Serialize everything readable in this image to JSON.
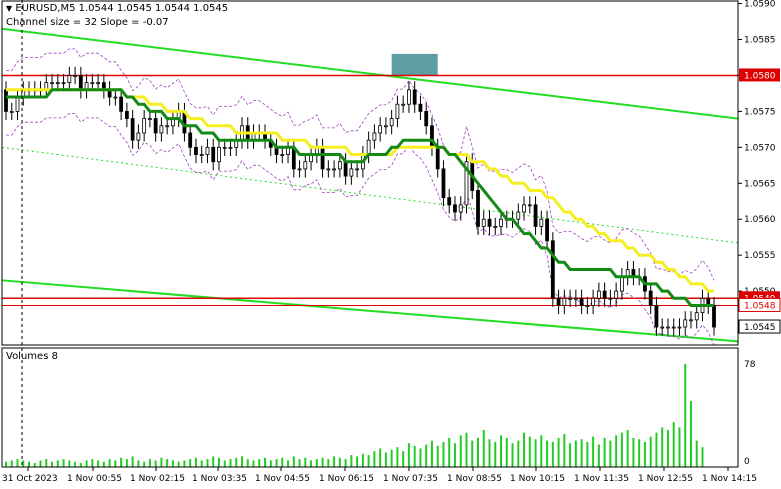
{
  "header": {
    "symbol_line": "EURUSD,M5  1.0544 1.0545 1.0544 1.0545",
    "channel_line": "Channel size = 32 Slope = -0.07",
    "volumes_label": "Volumes 8"
  },
  "colors": {
    "bull": "#000000",
    "bear": "#000000",
    "ma_slow": "#f5ef22",
    "ma_fast": "#138a13",
    "channel": "#22dd22",
    "envelope": "#a040c0",
    "level": "#dd0000",
    "zone": "#5e9ea0",
    "volume": "#22cc22",
    "volume_spike": "#dd0000"
  },
  "chart_data": {
    "type": "candlestick",
    "symbol": "EURUSD",
    "timeframe": "M5",
    "ylim": [
      1.05425,
      1.05905
    ],
    "price_ticks": [
      "1.0590",
      "1.0585",
      "1.0580",
      "1.0575",
      "1.0570",
      "1.0565",
      "1.0560",
      "1.0555",
      "1.0550",
      "1.0545"
    ],
    "x_labels": [
      "31 Oct 2023",
      "1 Nov 00:55",
      "1 Nov 02:15",
      "1 Nov 03:35",
      "1 Nov 04:55",
      "1 Nov 06:15",
      "1 Nov 07:35",
      "1 Nov 08:55",
      "1 Nov 10:15",
      "1 Nov 11:35",
      "1 Nov 12:55",
      "1 Nov 14:15"
    ],
    "price_labels": [
      {
        "text": "1.0580",
        "value": 1.058,
        "style": "red"
      },
      {
        "text": "1.0549",
        "value": 1.0549,
        "style": "red"
      },
      {
        "text": "1.0548",
        "value": 1.0548,
        "style": "redline"
      },
      {
        "text": "1.0545",
        "value": 1.0545,
        "style": "plain"
      }
    ],
    "horizontal_levels": [
      1.058,
      1.0549,
      1.0548
    ],
    "channel": {
      "upper_start": 1.05865,
      "upper_end": 1.0574,
      "mid_start": 1.057,
      "mid_end": 1.05567,
      "lower_start": 1.05515,
      "lower_end": 1.0543
    },
    "zone": {
      "index_from": 67,
      "index_to": 75,
      "low": 1.058,
      "high": 1.0583
    },
    "volume_axis": {
      "top": "78",
      "bottom": "0",
      "max": 78
    },
    "candles": {
      "open": [
        1.0578,
        1.0575,
        1.0575,
        1.0577,
        1.0578,
        1.0578,
        1.0578,
        1.0578,
        1.0579,
        1.0579,
        1.0579,
        1.0579,
        1.058,
        1.058,
        1.0578,
        1.0579,
        1.0579,
        1.0579,
        1.0578,
        1.0577,
        1.0577,
        1.0575,
        1.0574,
        1.0571,
        1.0572,
        1.0574,
        1.0574,
        1.0572,
        1.0573,
        1.0573,
        1.0574,
        1.0575,
        1.0572,
        1.057,
        1.0569,
        1.0569,
        1.057,
        1.0568,
        1.057,
        1.057,
        1.057,
        1.0571,
        1.0573,
        1.0571,
        1.0572,
        1.0572,
        1.0571,
        1.057,
        1.0569,
        1.0569,
        1.057,
        1.0567,
        1.0567,
        1.0568,
        1.0569,
        1.057,
        1.0567,
        1.0567,
        1.0567,
        1.0568,
        1.0566,
        1.0567,
        1.0567,
        1.0569,
        1.0571,
        1.0572,
        1.0573,
        1.0573,
        1.0574,
        1.0576,
        1.0576,
        1.0578,
        1.0576,
        1.0575,
        1.0573,
        1.057,
        1.0567,
        1.0563,
        1.0562,
        1.0561,
        1.0562,
        1.0568,
        1.0564,
        1.0559,
        1.056,
        1.0559,
        1.0559,
        1.056,
        1.056,
        1.056,
        1.0561,
        1.0562,
        1.0562,
        1.0559,
        1.056,
        1.0557,
        1.0549,
        1.0548,
        1.0549,
        1.0549,
        1.0549,
        1.0548,
        1.0548,
        1.0549,
        1.055,
        1.0549,
        1.0549,
        1.055,
        1.0552,
        1.0553,
        1.0552,
        1.0552,
        1.055,
        1.0548,
        1.0545,
        1.0545,
        1.0545,
        1.0545,
        1.0545,
        1.0546,
        1.0546,
        1.0547,
        1.0549,
        1.0548
      ],
      "close": [
        1.0575,
        1.0575,
        1.0577,
        1.0578,
        1.0578,
        1.0578,
        1.0578,
        1.0579,
        1.0579,
        1.0579,
        1.0579,
        1.058,
        1.058,
        1.0578,
        1.0579,
        1.0579,
        1.0579,
        1.0578,
        1.0577,
        1.0577,
        1.0575,
        1.0574,
        1.0571,
        1.0572,
        1.0574,
        1.0574,
        1.0572,
        1.0573,
        1.0573,
        1.0574,
        1.0575,
        1.0572,
        1.057,
        1.0569,
        1.0569,
        1.057,
        1.0568,
        1.057,
        1.057,
        1.057,
        1.0571,
        1.0573,
        1.0571,
        1.0572,
        1.0572,
        1.0571,
        1.057,
        1.0569,
        1.0569,
        1.057,
        1.0567,
        1.0567,
        1.0568,
        1.0569,
        1.057,
        1.0567,
        1.0567,
        1.0567,
        1.0568,
        1.0566,
        1.0567,
        1.0567,
        1.0569,
        1.0571,
        1.0572,
        1.0573,
        1.0573,
        1.0574,
        1.0576,
        1.0576,
        1.0578,
        1.0576,
        1.0575,
        1.0573,
        1.057,
        1.0567,
        1.0563,
        1.0562,
        1.0561,
        1.0562,
        1.0568,
        1.0564,
        1.0559,
        1.056,
        1.0559,
        1.0559,
        1.056,
        1.056,
        1.056,
        1.0561,
        1.0562,
        1.0562,
        1.0559,
        1.056,
        1.0557,
        1.0549,
        1.0548,
        1.0549,
        1.0549,
        1.0549,
        1.0548,
        1.0548,
        1.0549,
        1.055,
        1.0549,
        1.0549,
        1.055,
        1.0552,
        1.0553,
        1.0552,
        1.0552,
        1.055,
        1.0548,
        1.0545,
        1.0545,
        1.0545,
        1.0545,
        1.0545,
        1.0546,
        1.0546,
        1.0547,
        1.0549,
        1.0548,
        1.0545
      ]
    },
    "ma_slow": [
      1.0578,
      1.0578,
      1.0578,
      1.0578,
      1.0578,
      1.0578,
      1.0578,
      1.0578,
      1.0578,
      1.0578,
      1.0578,
      1.0578,
      1.0578,
      1.0578,
      1.0578,
      1.0578,
      1.0578,
      1.0578,
      1.0578,
      1.0578,
      1.0578,
      1.0577,
      1.0577,
      1.0577,
      1.0577,
      1.0576,
      1.0576,
      1.0576,
      1.0575,
      1.0575,
      1.0575,
      1.0575,
      1.0574,
      1.0574,
      1.0574,
      1.0573,
      1.0573,
      1.0573,
      1.0573,
      1.0573,
      1.0572,
      1.0572,
      1.0572,
      1.0572,
      1.0572,
      1.0572,
      1.0572,
      1.0572,
      1.0571,
      1.0571,
      1.0571,
      1.0571,
      1.0571,
      1.057,
      1.057,
      1.057,
      1.057,
      1.057,
      1.057,
      1.057,
      1.0569,
      1.0569,
      1.0569,
      1.0569,
      1.0569,
      1.0569,
      1.0569,
      1.0569,
      1.057,
      1.057,
      1.057,
      1.057,
      1.057,
      1.057,
      1.057,
      1.057,
      1.057,
      1.0569,
      1.0569,
      1.0569,
      1.0569,
      1.0568,
      1.0568,
      1.0568,
      1.0567,
      1.0567,
      1.0566,
      1.0566,
      1.0565,
      1.0565,
      1.0565,
      1.0564,
      1.0564,
      1.0564,
      1.0563,
      1.0563,
      1.0562,
      1.0561,
      1.0561,
      1.056,
      1.056,
      1.0559,
      1.0559,
      1.0558,
      1.0558,
      1.0557,
      1.0557,
      1.0557,
      1.0556,
      1.0556,
      1.0555,
      1.0555,
      1.0555,
      1.0554,
      1.0554,
      1.0553,
      1.0553,
      1.0552,
      1.0552,
      1.0551,
      1.0551,
      1.0551,
      1.055,
      1.055
    ],
    "ma_fast": [
      1.0577,
      1.0577,
      1.0577,
      1.0577,
      1.0577,
      1.0577,
      1.0577,
      1.0577,
      1.0578,
      1.0578,
      1.0578,
      1.0578,
      1.0578,
      1.0578,
      1.0578,
      1.0578,
      1.0578,
      1.0578,
      1.0578,
      1.0578,
      1.0578,
      1.0577,
      1.0577,
      1.0576,
      1.0576,
      1.0575,
      1.0575,
      1.0575,
      1.0574,
      1.0574,
      1.0574,
      1.0573,
      1.0573,
      1.0573,
      1.0572,
      1.0572,
      1.0572,
      1.0571,
      1.0571,
      1.0571,
      1.0571,
      1.0571,
      1.0571,
      1.0571,
      1.0571,
      1.0571,
      1.0571,
      1.057,
      1.057,
      1.057,
      1.057,
      1.0569,
      1.0569,
      1.0569,
      1.0569,
      1.0569,
      1.0569,
      1.0569,
      1.0569,
      1.0568,
      1.0568,
      1.0568,
      1.0568,
      1.0569,
      1.0569,
      1.0569,
      1.0569,
      1.057,
      1.057,
      1.0571,
      1.0571,
      1.0571,
      1.0571,
      1.0571,
      1.0571,
      1.057,
      1.057,
      1.0569,
      1.0569,
      1.0568,
      1.0567,
      1.0566,
      1.0565,
      1.0564,
      1.0563,
      1.0562,
      1.0561,
      1.056,
      1.056,
      1.0559,
      1.0558,
      1.0558,
      1.0557,
      1.0556,
      1.0556,
      1.0555,
      1.0554,
      1.0554,
      1.0553,
      1.0553,
      1.0553,
      1.0553,
      1.0553,
      1.0553,
      1.0553,
      1.0553,
      1.0552,
      1.0552,
      1.0552,
      1.0552,
      1.0552,
      1.0551,
      1.0551,
      1.0551,
      1.055,
      1.055,
      1.0549,
      1.0549,
      1.0549,
      1.0548,
      1.0548,
      1.0548,
      1.0548,
      1.0548
    ],
    "volumes": [
      4,
      5,
      6,
      5,
      4,
      3,
      5,
      6,
      4,
      5,
      6,
      5,
      4,
      3,
      5,
      6,
      5,
      4,
      6,
      5,
      7,
      6,
      8,
      5,
      4,
      6,
      5,
      7,
      6,
      5,
      4,
      5,
      6,
      7,
      5,
      6,
      8,
      7,
      5,
      6,
      7,
      8,
      6,
      5,
      6,
      7,
      5,
      6,
      7,
      5,
      8,
      6,
      7,
      5,
      6,
      7,
      6,
      8,
      7,
      6,
      9,
      8,
      10,
      9,
      12,
      14,
      11,
      13,
      15,
      12,
      18,
      16,
      14,
      17,
      20,
      16,
      19,
      22,
      18,
      24,
      26,
      20,
      22,
      28,
      21,
      19,
      24,
      22,
      18,
      20,
      26,
      23,
      21,
      24,
      20,
      19,
      22,
      25,
      18,
      20,
      21,
      19,
      23,
      17,
      22,
      20,
      24,
      26,
      28,
      22,
      21,
      19,
      23,
      26,
      30,
      28,
      34,
      30,
      78,
      50,
      20,
      15
    ]
  }
}
